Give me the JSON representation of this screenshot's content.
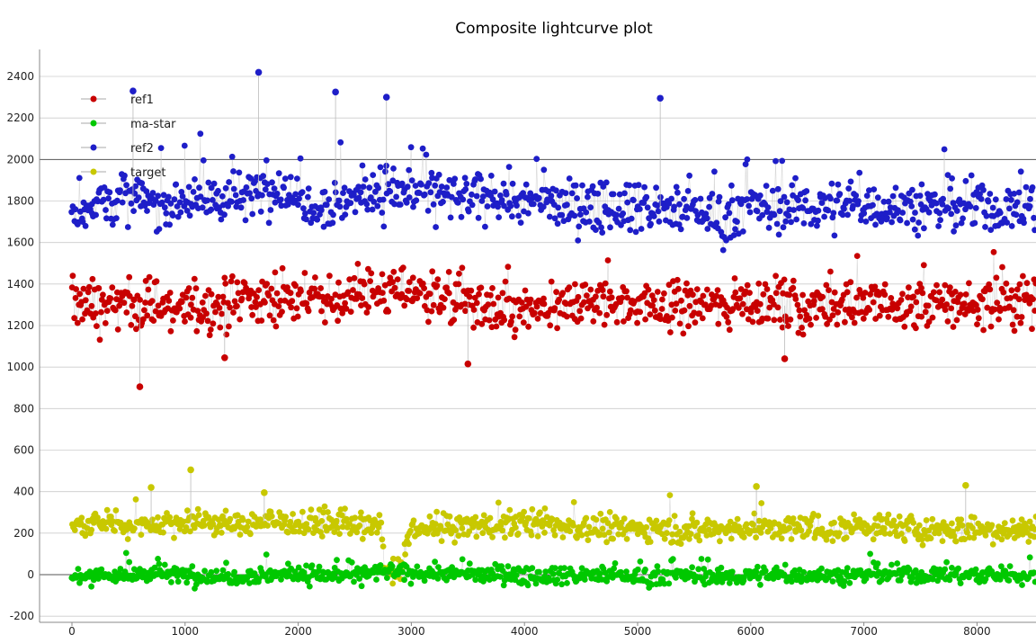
{
  "chart_data": {
    "type": "scatter",
    "title": "Composite lightcurve plot",
    "xlabel": "",
    "ylabel": "",
    "xlim": [
      -150,
      8550
    ],
    "ylim": [
      -210,
      2480
    ],
    "x_ticks": [
      0,
      1000,
      2000,
      3000,
      4000,
      5000,
      6000,
      7000,
      8000
    ],
    "y_ticks": [
      -200,
      0,
      200,
      400,
      600,
      800,
      1000,
      1200,
      1400,
      1600,
      1800,
      2000,
      2200,
      2400
    ],
    "grid": true,
    "legend_position": "top-left",
    "series": [
      {
        "name": "ref1",
        "color": "#c80000",
        "x": [
          0,
          250,
          500,
          750,
          1000,
          1250,
          1500,
          1750,
          2000,
          2250,
          2500,
          2750,
          3000,
          3250,
          3500,
          3750,
          4000,
          4250,
          4500,
          4750,
          5000,
          5250,
          5500,
          5750,
          6000,
          6250,
          6500,
          6750,
          7000,
          7250,
          7500,
          7750,
          8000,
          8250,
          8500
        ],
        "y": [
          1320,
          1290,
          1310,
          1300,
          1280,
          1290,
          1320,
          1330,
          1340,
          1310,
          1340,
          1360,
          1380,
          1340,
          1310,
          1260,
          1270,
          1260,
          1310,
          1320,
          1300,
          1290,
          1310,
          1290,
          1330,
          1300,
          1280,
          1320,
          1300,
          1290,
          1290,
          1310,
          1300,
          1320,
          1340
        ],
        "spread": 130,
        "outliers": [
          [
            600,
            905
          ],
          [
            3500,
            1015
          ],
          [
            6300,
            1040
          ],
          [
            1350,
            1045
          ]
        ]
      },
      {
        "name": "ref2",
        "color": "#1e1ec8",
        "x": [
          0,
          250,
          500,
          750,
          1000,
          1250,
          1500,
          1750,
          2000,
          2250,
          2500,
          2750,
          3000,
          3250,
          3500,
          3750,
          4000,
          4250,
          4500,
          4750,
          5000,
          5250,
          5500,
          5750,
          6000,
          6250,
          6500,
          6750,
          7000,
          7250,
          7500,
          7750,
          8000,
          8250,
          8500
        ],
        "y": [
          1750,
          1800,
          1820,
          1780,
          1820,
          1800,
          1810,
          1880,
          1820,
          1780,
          1820,
          1850,
          1850,
          1830,
          1800,
          1830,
          1790,
          1800,
          1760,
          1790,
          1780,
          1750,
          1760,
          1720,
          1780,
          1760,
          1780,
          1770,
          1790,
          1770,
          1780,
          1760,
          1780,
          1750,
          1780
        ],
        "spread": 130,
        "outliers": [
          [
            1650,
            2420
          ],
          [
            540,
            2330
          ],
          [
            2330,
            2325
          ],
          [
            5200,
            2295
          ],
          [
            2780,
            2300
          ]
        ]
      },
      {
        "name": "target",
        "color": "#c8c800",
        "x": [
          0,
          250,
          500,
          750,
          1000,
          1250,
          1500,
          1750,
          2000,
          2250,
          2500,
          2700,
          2800,
          2900,
          3000,
          3250,
          3500,
          3750,
          4000,
          4250,
          4500,
          4750,
          5000,
          5250,
          5500,
          5750,
          6000,
          6250,
          6500,
          6750,
          7000,
          7250,
          7500,
          7750,
          8000,
          8250,
          8500
        ],
        "y": [
          230,
          250,
          240,
          245,
          255,
          250,
          240,
          260,
          250,
          245,
          240,
          230,
          10,
          10,
          215,
          225,
          235,
          240,
          250,
          240,
          225,
          220,
          225,
          220,
          215,
          220,
          225,
          220,
          225,
          215,
          240,
          225,
          220,
          210,
          215,
          220,
          225
        ],
        "spread": 65,
        "outliers": [
          [
            1050,
            505
          ],
          [
            700,
            420
          ],
          [
            7900,
            430
          ],
          [
            6050,
            425
          ],
          [
            1700,
            395
          ]
        ]
      },
      {
        "name": "ma-star",
        "color": "#00c800",
        "x": [
          0,
          250,
          500,
          750,
          1000,
          1250,
          1500,
          1750,
          2000,
          2250,
          2500,
          2750,
          3000,
          3250,
          3500,
          3750,
          4000,
          4250,
          4500,
          4750,
          5000,
          5250,
          5500,
          5750,
          6000,
          6250,
          6500,
          6750,
          7000,
          7250,
          7500,
          7750,
          8000,
          8250,
          8500
        ],
        "y": [
          -10,
          0,
          -5,
          5,
          0,
          -10,
          -5,
          0,
          5,
          0,
          -5,
          15,
          5,
          10,
          0,
          5,
          -5,
          0,
          -5,
          0,
          -10,
          -5,
          0,
          -15,
          0,
          -5,
          0,
          -5,
          0,
          5,
          -5,
          0,
          0,
          -5,
          0
        ],
        "spread": 45,
        "outliers": []
      }
    ]
  }
}
